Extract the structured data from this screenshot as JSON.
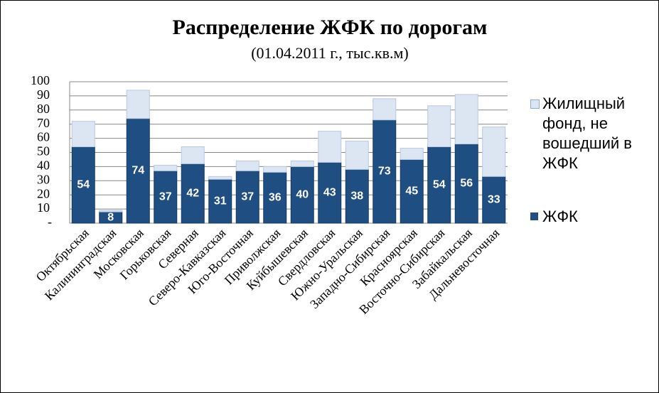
{
  "chart_data": {
    "type": "stacked-bar",
    "title": "Распределение ЖФК по дорогам",
    "subtitle": "(01.04.2011  г., тыс.кв.м)",
    "categories": [
      "Октябрьская",
      "Калининградская",
      "Московская",
      "Горьковская",
      "Северная",
      "Северо-Кавказская",
      "Юго-Восточная",
      "Приволжская",
      "Куйбышевская",
      "Свердловская",
      "Южно-Уральская",
      "Западно-Сибирская",
      "Красноярская",
      "Восточно-Сибирская",
      "Забайкальская",
      "Дальневосточная"
    ],
    "series": [
      {
        "name": "ЖФК",
        "color": "#1f4e82",
        "values": [
          54,
          8,
          74,
          37,
          42,
          31,
          37,
          36,
          40,
          43,
          38,
          73,
          45,
          54,
          56,
          33
        ]
      },
      {
        "name": "Жилищный фонд, не вошедший в ЖФК",
        "color": "#dce6f2",
        "values": [
          18,
          1,
          20,
          4,
          12,
          2,
          7,
          4,
          4,
          22,
          20,
          15,
          8,
          29,
          35,
          35
        ]
      }
    ],
    "ylim": [
      0,
      100
    ],
    "yticks": [
      {
        "value": 0,
        "label": "-"
      },
      10,
      20,
      30,
      40,
      50,
      60,
      70,
      80,
      90,
      100
    ],
    "grid": true
  }
}
